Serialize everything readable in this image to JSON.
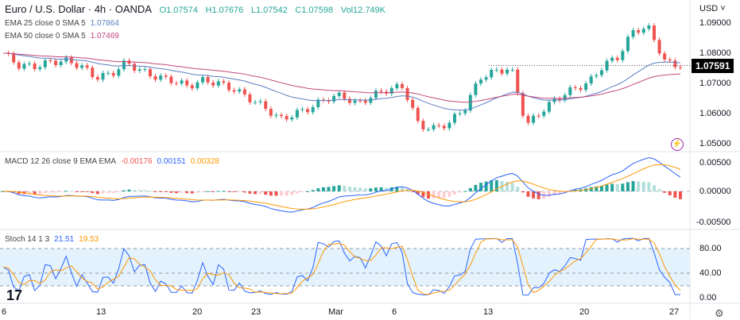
{
  "header": {
    "title": "Euro / U.S. Dollar · 4h · OANDA",
    "ohlc": {
      "o": "O1.07574",
      "h": "H1.07676",
      "l": "L1.07542",
      "c": "C1.07598",
      "vol": "Vol12.749K"
    }
  },
  "ema25": {
    "label": "EMA 25 close 0 SMA 5",
    "value": "1.07864",
    "color": "#5b7fc2"
  },
  "ema50": {
    "label": "EMA 50 close 0 SMA 5",
    "value": "1.07469",
    "color": "#c2477b"
  },
  "macd": {
    "label": "MACD 12 26 close 9 EMA EMA",
    "hist": "-0.00176",
    "macd": "0.00151",
    "signal": "0.00328",
    "ticks": [
      "0.00500",
      "0.00000",
      "-0.00500"
    ]
  },
  "stoch": {
    "label": "Stoch 14 1 3",
    "k": "21.51",
    "d": "19.53",
    "ticks": [
      "80.00",
      "40.00",
      "0.00"
    ]
  },
  "price_axis": {
    "currency": "USD",
    "ticks": [
      "1.09000",
      "1.08000",
      "1.07000",
      "1.06000",
      "1.05000"
    ],
    "last_price": "1.07591"
  },
  "time_axis": [
    "6",
    "13",
    "20",
    "23",
    "Mar",
    "6",
    "13",
    "20",
    "27"
  ],
  "colors": {
    "up": "#26a69a",
    "down": "#ef5350",
    "macd": "#2962ff",
    "signal": "#ff9800",
    "stoch_band": "#e3f2fd"
  },
  "icons": {
    "settings": "gear-icon",
    "alert": "lightning-icon",
    "logo": "tradingview-logo"
  },
  "chart_data": {
    "type": "line",
    "title": "Euro / U.S. Dollar · 4h · OANDA",
    "xticks": [
      "6",
      "13",
      "20",
      "23",
      "Mar",
      "6",
      "13",
      "20",
      "27"
    ],
    "ylim": [
      1.05,
      1.092
    ],
    "close": [
      1.08,
      1.076,
      1.0755,
      1.077,
      1.0775,
      1.076,
      1.072,
      1.073,
      1.077,
      1.074,
      1.072,
      1.071,
      1.069,
      1.071,
      1.07,
      1.068,
      1.065,
      1.062,
      1.058,
      1.06,
      1.062,
      1.065,
      1.066,
      1.063,
      1.066,
      1.068,
      1.069,
      1.056,
      1.055,
      1.057,
      1.062,
      1.072,
      1.074,
      1.075,
      1.056,
      1.061,
      1.065,
      1.068,
      1.07,
      1.076,
      1.079,
      1.088,
      1.088,
      1.077,
      1.0759
    ]
  }
}
